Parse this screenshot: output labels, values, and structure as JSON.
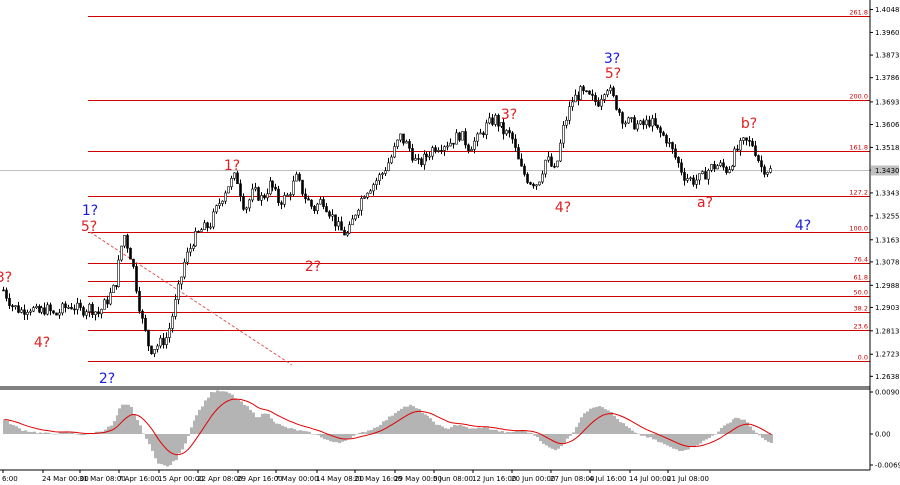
{
  "chart_data": {
    "type": "candlestick",
    "indicator": "MACD",
    "price_range": [
      1.2597,
      1.4077
    ],
    "y_ticks": [
      "1.4048",
      "1.3960",
      "1.3873",
      "1.3786",
      "1.3693",
      "1.3606",
      "1.3518",
      "1.3431",
      "1.3343",
      "1.3255",
      "1.3163",
      "1.3078",
      "1.2988",
      "1.2903",
      "1.2813",
      "1.2723",
      "1.2638"
    ],
    "current_price": "1.3430",
    "macd_ticks": [
      "0.00901",
      "0.00",
      "-0.00697"
    ],
    "x_ticks": [
      "6:00",
      "24 Mar 00:00",
      "31 Mar 08:00",
      "7 Apr 16:00",
      "15 Apr 00:00",
      "22 Apr 08:00",
      "29 Apr 16:00",
      "7 May 00:00",
      "14 May 08:00",
      "21 May 16:00",
      "29 May 00:00",
      "5 Jun 08:00",
      "12 Jun 16:00",
      "20 Jun 00:00",
      "27 Jun 08:00",
      "4 Jul 16:00",
      "14 Jul 00:00",
      "21 Jul 08:00"
    ],
    "fib_levels": [
      {
        "label": "261.8",
        "price": 1.4023
      },
      {
        "label": "200.0",
        "price": 1.3701
      },
      {
        "label": "161.8",
        "price": 1.3503
      },
      {
        "label": "127.2",
        "price": 1.3333
      },
      {
        "label": "100.0",
        "price": 1.3194
      },
      {
        "label": "76.4",
        "price": 1.3074
      },
      {
        "label": "61.8",
        "price": 1.3003
      },
      {
        "label": "50.0",
        "price": 1.2945
      },
      {
        "label": "38.2",
        "price": 1.2887
      },
      {
        "label": "23.6",
        "price": 1.2815
      },
      {
        "label": "0.0",
        "price": 1.2697
      }
    ],
    "wave_labels": [
      {
        "text": "3?",
        "color": "red"
      },
      {
        "text": "4?",
        "color": "red"
      },
      {
        "text": "1?",
        "color": "blue"
      },
      {
        "text": "5?",
        "color": "red"
      },
      {
        "text": "2?",
        "color": "blue"
      },
      {
        "text": "1?",
        "color": "red"
      },
      {
        "text": "2?",
        "color": "red"
      },
      {
        "text": "3?",
        "color": "red"
      },
      {
        "text": "4?",
        "color": "red"
      },
      {
        "text": "3?",
        "color": "blue"
      },
      {
        "text": "5?",
        "color": "red"
      },
      {
        "text": "a?",
        "color": "red"
      },
      {
        "text": "b?",
        "color": "red"
      },
      {
        "text": "4?",
        "color": "blue"
      }
    ],
    "price_path": [
      1.297,
      1.291,
      1.289,
      1.2905,
      1.288,
      1.29,
      1.287,
      1.29,
      1.291,
      1.289,
      1.2905,
      1.288,
      1.293,
      1.299,
      1.319,
      1.308,
      1.287,
      1.274,
      1.276,
      1.279,
      1.293,
      1.308,
      1.316,
      1.32,
      1.322,
      1.33,
      1.337,
      1.341,
      1.328,
      1.335,
      1.332,
      1.338,
      1.331,
      1.333,
      1.34,
      1.333,
      1.328,
      1.332,
      1.326,
      1.32,
      1.318,
      1.328,
      1.335,
      1.338,
      1.342,
      1.348,
      1.356,
      1.352,
      1.345,
      1.348,
      1.352,
      1.353,
      1.354,
      1.357,
      1.352,
      1.355,
      1.36,
      1.363,
      1.358,
      1.356,
      1.344,
      1.339,
      1.338,
      1.348,
      1.342,
      1.36,
      1.37,
      1.373,
      1.371,
      1.369,
      1.376,
      1.369,
      1.362,
      1.361,
      1.36,
      1.362,
      1.358,
      1.355,
      1.348,
      1.341,
      1.339,
      1.34,
      1.344,
      1.345,
      1.343,
      1.35,
      1.354,
      1.353,
      1.344,
      1.343
    ],
    "macd_path": [
      0.003,
      0.0018,
      0.0008,
      0.0005,
      0.0002,
      0.0001,
      0.0002,
      0.0004,
      0.0,
      -0.0002,
      0.0003,
      0.0008,
      0.002,
      0.006,
      0.006,
      0.002,
      -0.002,
      -0.006,
      -0.007,
      -0.0055,
      -0.002,
      0.003,
      0.006,
      0.0088,
      0.009,
      0.0085,
      0.007,
      0.0055,
      0.0035,
      0.0045,
      0.0025,
      0.0015,
      0.001,
      0.0006,
      0.0002,
      -0.0005,
      -0.0015,
      -0.002,
      -0.001,
      -0.0002,
      0.0005,
      0.0012,
      0.0025,
      0.004,
      0.0055,
      0.006,
      0.005,
      0.0035,
      0.002,
      0.001,
      0.002,
      0.0015,
      0.001,
      0.0015,
      0.001,
      0.0005,
      0.0002,
      0.0008,
      0.0005,
      -0.0005,
      -0.0025,
      -0.0035,
      -0.002,
      0.0005,
      0.0035,
      0.0055,
      0.006,
      0.005,
      0.003,
      0.0015,
      0.0,
      -0.0005,
      -0.0012,
      -0.002,
      -0.003,
      -0.0035,
      -0.003,
      -0.002,
      -0.001,
      0.0005,
      0.002,
      0.0035,
      0.003,
      0.001,
      -0.001,
      -0.002
    ]
  }
}
